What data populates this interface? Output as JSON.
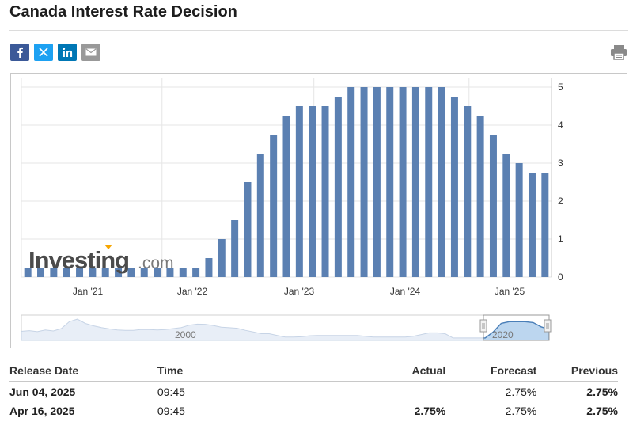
{
  "page": {
    "title": "Canada Interest Rate Decision"
  },
  "share": [
    {
      "name": "facebook",
      "icon": "facebook-icon",
      "color": "#3b5998"
    },
    {
      "name": "x",
      "icon": "x-icon",
      "color": "#1da1f2"
    },
    {
      "name": "linkedin",
      "icon": "linkedin-icon",
      "color": "#0077b5"
    },
    {
      "name": "email",
      "icon": "mail-icon",
      "color": "#999999"
    }
  ],
  "print_icon": "printer-icon",
  "watermark": {
    "brand": "Investing",
    "suffix": ".com"
  },
  "chart_data": {
    "type": "bar",
    "bar_color": "#5b80b2",
    "x_tick_labels": [
      "Jan '21",
      "Jan '22",
      "Jan '23",
      "Jan '24",
      "Jan '25"
    ],
    "y_tick_labels": [
      "0",
      "1",
      "2",
      "3",
      "4",
      "5"
    ],
    "ylim": [
      0,
      5.25
    ],
    "y_axis_position": "right",
    "grid": true,
    "values": [
      0.25,
      0.25,
      0.25,
      0.25,
      0.25,
      0.25,
      0.25,
      0.25,
      0.25,
      0.25,
      0.25,
      0.25,
      0.25,
      0.25,
      0.5,
      1.0,
      1.5,
      2.5,
      3.25,
      3.75,
      4.25,
      4.5,
      4.5,
      4.5,
      4.75,
      5.0,
      5.0,
      5.0,
      5.0,
      5.0,
      5.0,
      5.0,
      5.0,
      4.75,
      4.5,
      4.25,
      3.75,
      3.25,
      3.0,
      2.75,
      2.75
    ],
    "navigator": {
      "labels": [
        "2000",
        "2020"
      ],
      "series": [
        2.2,
        2.4,
        2.1,
        2.6,
        2.3,
        3.0,
        5.0,
        5.75,
        4.5,
        3.8,
        3.3,
        2.9,
        2.6,
        2.5,
        2.5,
        2.75,
        2.7,
        2.6,
        2.7,
        3.0,
        3.3,
        4.0,
        4.3,
        4.25,
        3.9,
        3.4,
        3.25,
        3.1,
        2.5,
        2.0,
        1.5,
        1.5,
        1.0,
        0.5,
        0.5,
        0.6,
        0.9,
        1.0,
        1.0,
        1.0,
        1.0,
        1.0,
        1.0,
        0.75,
        0.5,
        0.5,
        0.5,
        0.5,
        0.5,
        0.75,
        1.25,
        1.75,
        1.75,
        1.5,
        0.25,
        0.25,
        0.25,
        0.25,
        0.25,
        2.0,
        4.5,
        5.0,
        5.0,
        5.0,
        4.75,
        3.5,
        2.75
      ],
      "ylim": [
        0,
        6
      ]
    }
  },
  "table": {
    "headers": {
      "date": "Release Date",
      "time": "Time",
      "actual": "Actual",
      "forecast": "Forecast",
      "previous": "Previous"
    },
    "rows": [
      {
        "date": "Jun 04, 2025",
        "time": "09:45",
        "actual": "",
        "forecast": "2.75%",
        "previous": "2.75%"
      },
      {
        "date": "Apr 16, 2025",
        "time": "09:45",
        "actual": "2.75%",
        "forecast": "2.75%",
        "previous": "2.75%"
      }
    ]
  }
}
